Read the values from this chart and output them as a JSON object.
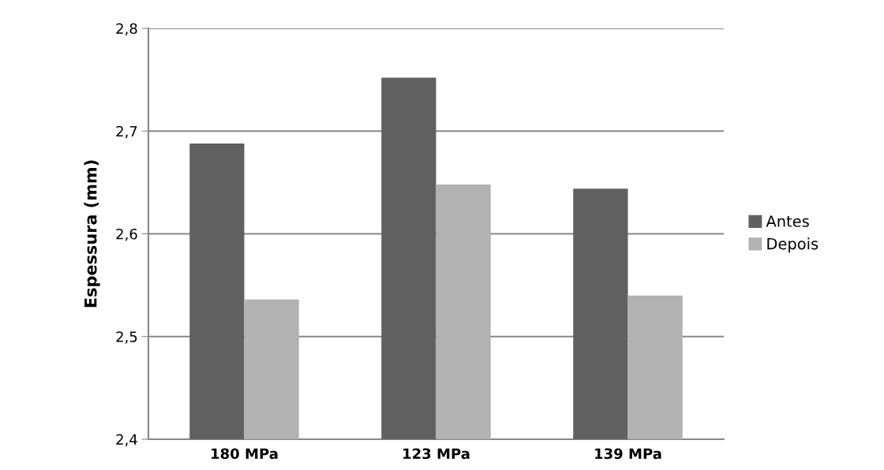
{
  "chart_data": {
    "type": "bar",
    "ylabel": "Espessura (mm)",
    "categories": [
      "180 MPa",
      "123 MPa",
      "139 MPa"
    ],
    "series": [
      {
        "name": "Antes",
        "color": "#606060",
        "values": [
          2.688,
          2.752,
          2.644
        ]
      },
      {
        "name": "Depois",
        "color": "#b2b2b2",
        "values": [
          2.536,
          2.648,
          2.54
        ]
      }
    ],
    "ylim": [
      2.4,
      2.8
    ],
    "yticks": [
      {
        "value": 2.4,
        "label": "2,4"
      },
      {
        "value": 2.5,
        "label": "2,5"
      },
      {
        "value": 2.6,
        "label": "2,6"
      },
      {
        "value": 2.7,
        "label": "2,7"
      },
      {
        "value": 2.8,
        "label": "2,8"
      }
    ],
    "grid": "y",
    "legend": "right"
  }
}
